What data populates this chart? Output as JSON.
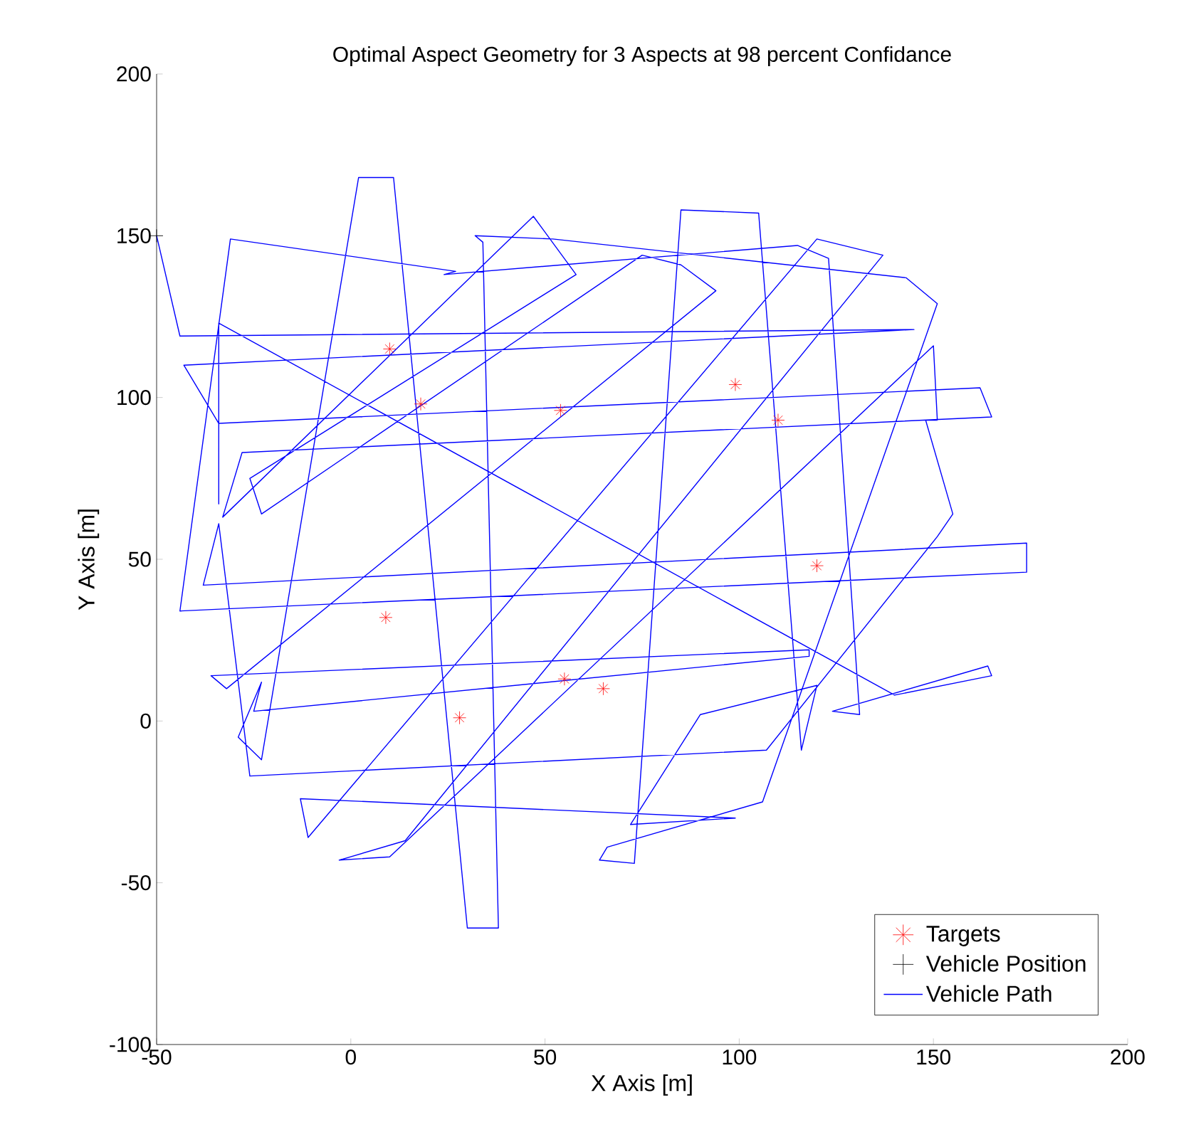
{
  "chart_data": {
    "type": "line",
    "title": "Optimal Aspect Geometry for 3 Aspects at 98 percent Confidance",
    "xlabel": "X Axis [m]",
    "ylabel": "Y Axis [m]",
    "xlim": [
      -50,
      200
    ],
    "ylim": [
      -100,
      200
    ],
    "xticks": [
      -50,
      0,
      50,
      100,
      150,
      200
    ],
    "yticks": [
      -100,
      -50,
      0,
      50,
      100,
      150,
      200
    ],
    "grid": false,
    "legend": "bottom right",
    "series": [
      {
        "name": "Targets",
        "type": "scatter",
        "marker": "cross",
        "color": "#ff0000",
        "x": [
          10,
          18,
          54,
          99,
          110,
          120,
          9,
          55,
          65,
          28
        ],
        "values": [
          115,
          98,
          96,
          104,
          93,
          48,
          32,
          13,
          10,
          1
        ]
      },
      {
        "name": "Vehicle Position",
        "type": "scatter",
        "color": "#000000",
        "x": [
          -50
        ],
        "values": [
          150
        ]
      },
      {
        "name": "Vehicle Path",
        "marker": "none",
        "line_style": "solid",
        "color": "#0000ff",
        "x": [
          -50,
          -44,
          145,
          -43,
          -34,
          162,
          165,
          -28,
          -33,
          47,
          58,
          -26,
          -23,
          75,
          85,
          94,
          -32,
          -36,
          118,
          118,
          -25,
          -23,
          -29,
          -23,
          2,
          11,
          30,
          38,
          34,
          32,
          52,
          143,
          151,
          106,
          66,
          64,
          73,
          85,
          105,
          116,
          120,
          90,
          72,
          99,
          -13,
          -11,
          120,
          137,
          14,
          -3,
          10,
          150,
          151,
          148,
          155,
          151,
          107,
          -26,
          -34,
          -38,
          174,
          174,
          -44,
          -31,
          27,
          24,
          115,
          123,
          131,
          124,
          164,
          165,
          140,
          -34,
          -34
        ],
        "values": [
          150,
          119,
          121,
          110,
          92,
          103,
          94,
          83,
          63,
          156,
          138,
          75,
          64,
          144,
          141,
          133,
          10,
          14,
          22,
          20,
          3,
          12,
          -5,
          -12,
          168,
          168,
          -64,
          -64,
          148,
          150,
          149,
          137,
          129,
          -25,
          -39,
          -43,
          -44,
          158,
          157,
          -9,
          11,
          2,
          -32,
          -30,
          -24,
          -36,
          149,
          144,
          -37,
          -43,
          -42,
          116,
          93,
          93,
          64,
          57,
          -9,
          -17,
          61,
          42,
          55,
          46,
          34,
          149,
          139,
          138,
          147,
          143,
          2,
          3,
          17,
          14,
          8,
          123,
          67
        ]
      }
    ]
  }
}
